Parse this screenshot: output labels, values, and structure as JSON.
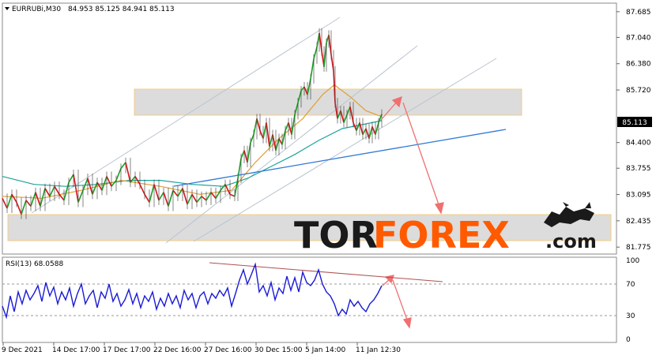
{
  "header": {
    "symbol": "EURRUBi,M30",
    "ohlc": "84.953 85.125 84.941 85.113",
    "rsi_label": "RSI(13) 68.0588"
  },
  "watermark": {
    "part1": "TOR",
    "part2": "FOREX",
    "suffix": ".com"
  },
  "colors": {
    "bull_candle": "#1b9c23",
    "bear_candle": "#d0151c",
    "ma_fast": "#e0a032",
    "ma_slow": "#1aa39a",
    "trendline": "#2f78d6",
    "channel": "#b8c4cf",
    "arrow": "#f07070",
    "zone_fill": "#d9d9d9",
    "zone_border": "#f3c77a",
    "rsi_line": "#1a1ad6",
    "rsi_trend": "#b05050",
    "watermark_dark": "#1a1a1a",
    "watermark_accent": "#ff5a00"
  },
  "chart_data": [
    {
      "type": "line",
      "title": "EURRUBi,M30",
      "current_price": "85.113",
      "y_ticks": [
        "87.685",
        "87.040",
        "86.380",
        "85.720",
        "85.113",
        "84.400",
        "83.755",
        "83.095",
        "82.435",
        "81.775"
      ],
      "y_range": [
        81.6,
        87.9
      ],
      "x_ticks": [
        "9 Dec 2021",
        "14 Dec 17:00",
        "17 Dec 17:00",
        "22 Dec 16:00",
        "27 Dec 16:00",
        "30 Dec 15:00",
        "5 Jan 14:00",
        "11 Jan 12:30"
      ],
      "price_path": [
        [
          0,
          83.0
        ],
        [
          6,
          82.75
        ],
        [
          12,
          83.1
        ],
        [
          18,
          82.9
        ],
        [
          24,
          82.6
        ],
        [
          30,
          82.95
        ],
        [
          36,
          82.8
        ],
        [
          42,
          83.15
        ],
        [
          48,
          82.8
        ],
        [
          54,
          83.25
        ],
        [
          60,
          83.05
        ],
        [
          66,
          83.3
        ],
        [
          72,
          83.1
        ],
        [
          78,
          82.95
        ],
        [
          84,
          83.4
        ],
        [
          90,
          83.6
        ],
        [
          96,
          82.9
        ],
        [
          102,
          83.2
        ],
        [
          108,
          83.5
        ],
        [
          114,
          83.1
        ],
        [
          120,
          83.4
        ],
        [
          126,
          83.2
        ],
        [
          132,
          83.55
        ],
        [
          138,
          83.3
        ],
        [
          144,
          83.45
        ],
        [
          150,
          83.75
        ],
        [
          156,
          83.9
        ],
        [
          162,
          83.4
        ],
        [
          168,
          83.55
        ],
        [
          174,
          83.35
        ],
        [
          180,
          83.1
        ],
        [
          186,
          82.9
        ],
        [
          192,
          83.35
        ],
        [
          198,
          82.95
        ],
        [
          204,
          83.15
        ],
        [
          210,
          82.8
        ],
        [
          216,
          83.2
        ],
        [
          222,
          83.05
        ],
        [
          228,
          83.25
        ],
        [
          234,
          82.85
        ],
        [
          240,
          83.1
        ],
        [
          246,
          82.9
        ],
        [
          252,
          83.05
        ],
        [
          258,
          82.95
        ],
        [
          264,
          83.15
        ],
        [
          270,
          83.0
        ],
        [
          276,
          83.2
        ],
        [
          282,
          83.35
        ],
        [
          288,
          83.1
        ],
        [
          294,
          83.05
        ],
        [
          298,
          83.5
        ],
        [
          302,
          84.0
        ],
        [
          306,
          84.2
        ],
        [
          310,
          83.9
        ],
        [
          314,
          84.4
        ],
        [
          318,
          84.6
        ],
        [
          322,
          85.0
        ],
        [
          326,
          84.7
        ],
        [
          330,
          84.5
        ],
        [
          334,
          84.9
        ],
        [
          338,
          84.3
        ],
        [
          342,
          84.6
        ],
        [
          346,
          84.2
        ],
        [
          350,
          84.5
        ],
        [
          354,
          84.35
        ],
        [
          358,
          84.7
        ],
        [
          362,
          84.9
        ],
        [
          366,
          84.6
        ],
        [
          370,
          85.1
        ],
        [
          374,
          85.4
        ],
        [
          378,
          85.7
        ],
        [
          382,
          85.8
        ],
        [
          386,
          85.6
        ],
        [
          390,
          86.0
        ],
        [
          394,
          86.5
        ],
        [
          398,
          86.8
        ],
        [
          401,
          87.15
        ],
        [
          404,
          86.7
        ],
        [
          407,
          86.3
        ],
        [
          410,
          86.9
        ],
        [
          413,
          87.1
        ],
        [
          416,
          86.6
        ],
        [
          419,
          86.2
        ],
        [
          421,
          85.4
        ],
        [
          424,
          85.0
        ],
        [
          428,
          85.2
        ],
        [
          432,
          84.9
        ],
        [
          436,
          85.1
        ],
        [
          440,
          85.3
        ],
        [
          444,
          84.9
        ],
        [
          448,
          84.7
        ],
        [
          452,
          84.9
        ],
        [
          456,
          84.6
        ],
        [
          460,
          84.75
        ],
        [
          464,
          84.5
        ],
        [
          468,
          84.8
        ],
        [
          472,
          84.6
        ],
        [
          476,
          84.9
        ],
        [
          480,
          85.113
        ]
      ],
      "ma_fast": [
        [
          0,
          83.05
        ],
        [
          50,
          83.0
        ],
        [
          100,
          83.2
        ],
        [
          150,
          83.45
        ],
        [
          200,
          83.3
        ],
        [
          250,
          83.1
        ],
        [
          290,
          83.2
        ],
        [
          320,
          83.9
        ],
        [
          350,
          84.5
        ],
        [
          380,
          85.0
        ],
        [
          405,
          85.6
        ],
        [
          420,
          85.85
        ],
        [
          440,
          85.55
        ],
        [
          460,
          85.2
        ],
        [
          480,
          85.05
        ]
      ],
      "ma_slow": [
        [
          0,
          83.55
        ],
        [
          40,
          83.35
        ],
        [
          80,
          83.3
        ],
        [
          120,
          83.35
        ],
        [
          160,
          83.45
        ],
        [
          200,
          83.45
        ],
        [
          240,
          83.35
        ],
        [
          280,
          83.3
        ],
        [
          310,
          83.5
        ],
        [
          340,
          83.8
        ],
        [
          370,
          84.1
        ],
        [
          400,
          84.45
        ],
        [
          430,
          84.75
        ],
        [
          455,
          84.85
        ],
        [
          480,
          84.95
        ]
      ],
      "rsi": {
        "levels": [
          70,
          30
        ],
        "y_ticks": [
          "100",
          "70",
          "30",
          "0"
        ],
        "series": [
          [
            0,
            42
          ],
          [
            5,
            28
          ],
          [
            10,
            55
          ],
          [
            15,
            35
          ],
          [
            20,
            60
          ],
          [
            25,
            45
          ],
          [
            30,
            62
          ],
          [
            35,
            50
          ],
          [
            40,
            58
          ],
          [
            45,
            68
          ],
          [
            50,
            48
          ],
          [
            55,
            72
          ],
          [
            60,
            55
          ],
          [
            65,
            66
          ],
          [
            70,
            45
          ],
          [
            75,
            60
          ],
          [
            80,
            50
          ],
          [
            85,
            65
          ],
          [
            90,
            42
          ],
          [
            95,
            58
          ],
          [
            100,
            70
          ],
          [
            105,
            45
          ],
          [
            110,
            55
          ],
          [
            115,
            62
          ],
          [
            120,
            40
          ],
          [
            125,
            60
          ],
          [
            130,
            52
          ],
          [
            135,
            70
          ],
          [
            140,
            48
          ],
          [
            145,
            58
          ],
          [
            150,
            42
          ],
          [
            155,
            50
          ],
          [
            160,
            63
          ],
          [
            165,
            45
          ],
          [
            170,
            58
          ],
          [
            175,
            40
          ],
          [
            180,
            55
          ],
          [
            185,
            48
          ],
          [
            190,
            60
          ],
          [
            195,
            38
          ],
          [
            200,
            52
          ],
          [
            205,
            42
          ],
          [
            210,
            58
          ],
          [
            215,
            45
          ],
          [
            220,
            55
          ],
          [
            225,
            40
          ],
          [
            230,
            62
          ],
          [
            235,
            50
          ],
          [
            240,
            58
          ],
          [
            245,
            40
          ],
          [
            250,
            55
          ],
          [
            255,
            60
          ],
          [
            260,
            45
          ],
          [
            265,
            58
          ],
          [
            270,
            52
          ],
          [
            275,
            62
          ],
          [
            280,
            55
          ],
          [
            285,
            65
          ],
          [
            290,
            42
          ],
          [
            295,
            58
          ],
          [
            300,
            75
          ],
          [
            305,
            88
          ],
          [
            310,
            70
          ],
          [
            315,
            82
          ],
          [
            320,
            95
          ],
          [
            325,
            60
          ],
          [
            330,
            68
          ],
          [
            335,
            55
          ],
          [
            340,
            72
          ],
          [
            345,
            50
          ],
          [
            350,
            65
          ],
          [
            355,
            58
          ],
          [
            360,
            80
          ],
          [
            365,
            62
          ],
          [
            370,
            78
          ],
          [
            375,
            60
          ],
          [
            380,
            85
          ],
          [
            385,
            72
          ],
          [
            390,
            68
          ],
          [
            395,
            75
          ],
          [
            400,
            88
          ],
          [
            405,
            70
          ],
          [
            410,
            60
          ],
          [
            415,
            55
          ],
          [
            420,
            45
          ],
          [
            425,
            30
          ],
          [
            430,
            38
          ],
          [
            435,
            32
          ],
          [
            440,
            50
          ],
          [
            445,
            42
          ],
          [
            450,
            48
          ],
          [
            455,
            40
          ],
          [
            460,
            35
          ],
          [
            465,
            45
          ],
          [
            470,
            50
          ],
          [
            475,
            58
          ],
          [
            480,
            68
          ]
        ]
      }
    }
  ]
}
